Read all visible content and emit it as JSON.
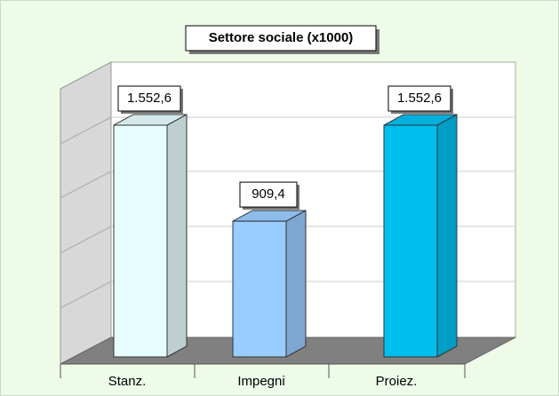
{
  "chart_data": {
    "type": "bar3d",
    "title": "Settore sociale (x1000)",
    "categories": [
      "Stanz.",
      "Impegni",
      "Proiez."
    ],
    "values": [
      1552.6,
      909.4,
      1552.6
    ],
    "value_labels": [
      "1.552,6",
      "909,4",
      "1.552,6"
    ],
    "colors": [
      "#e6fdff",
      "#99ccff",
      "#00bfef"
    ],
    "ylim": [
      0,
      1850
    ]
  }
}
